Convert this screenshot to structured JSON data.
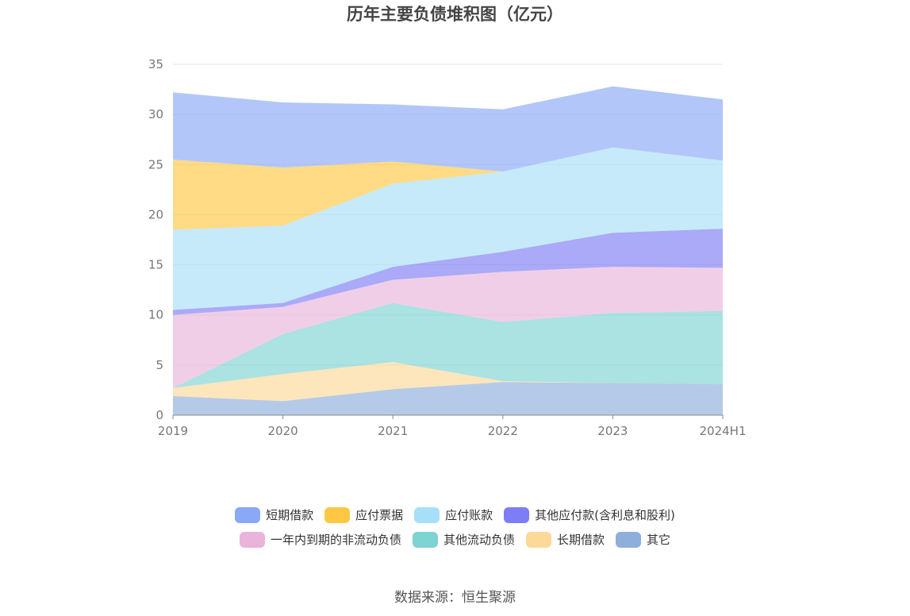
{
  "title": "历年主要负债堆积图（亿元）",
  "source": "数据来源：恒生聚源",
  "chart_data": {
    "type": "area",
    "stacked": true,
    "title": "历年主要负债堆积图（亿元）",
    "xlabel": "",
    "ylabel": "",
    "categories": [
      "2019",
      "2020",
      "2021",
      "2022",
      "2023",
      "2024H1"
    ],
    "ylim": [
      0,
      35
    ],
    "yticks": [
      0,
      5,
      10,
      15,
      20,
      25,
      30,
      35
    ],
    "grid": true,
    "legend_position": "bottom",
    "series": [
      {
        "name": "其它",
        "color": "#8eaedc",
        "values": [
          1.9,
          1.4,
          2.6,
          3.3,
          3.2,
          3.1
        ]
      },
      {
        "name": "长期借款",
        "color": "#fdd998",
        "values": [
          0.8,
          2.7,
          2.7,
          0.1,
          0.0,
          0.0
        ]
      },
      {
        "name": "其他流动负债",
        "color": "#7ed3d3",
        "values": [
          0.0,
          4.0,
          5.9,
          5.9,
          7.0,
          7.3
        ]
      },
      {
        "name": "一年内到期的非流动负债",
        "color": "#e9b3da",
        "values": [
          7.3,
          2.7,
          2.3,
          5.0,
          4.6,
          4.3
        ]
      },
      {
        "name": "其他应付款(含利息和股利)",
        "color": "#7d7df5",
        "values": [
          0.5,
          0.4,
          1.3,
          2.0,
          3.4,
          3.9
        ]
      },
      {
        "name": "应付账款",
        "color": "#a8dff8",
        "values": [
          8.0,
          7.7,
          8.3,
          8.0,
          8.5,
          6.8
        ]
      },
      {
        "name": "应付票据",
        "color": "#ffc844",
        "values": [
          7.0,
          5.8,
          2.2,
          0.0,
          0.0,
          0.0
        ]
      },
      {
        "name": "短期借款",
        "color": "#8aa8f8",
        "values": [
          6.7,
          6.5,
          5.7,
          6.2,
          6.1,
          6.1
        ]
      }
    ]
  },
  "legend": {
    "rows": [
      [
        {
          "label": "短期借款",
          "color": "#8aa8f8"
        },
        {
          "label": "应付票据",
          "color": "#ffc844"
        },
        {
          "label": "应付账款",
          "color": "#a8dff8"
        },
        {
          "label": "其他应付款(含利息和股利)",
          "color": "#7d7df5"
        }
      ],
      [
        {
          "label": "一年内到期的非流动负债",
          "color": "#e9b3da"
        },
        {
          "label": "其他流动负债",
          "color": "#7ed3d3"
        },
        {
          "label": "长期借款",
          "color": "#fdd998"
        },
        {
          "label": "其它",
          "color": "#8eaedc"
        }
      ]
    ]
  }
}
